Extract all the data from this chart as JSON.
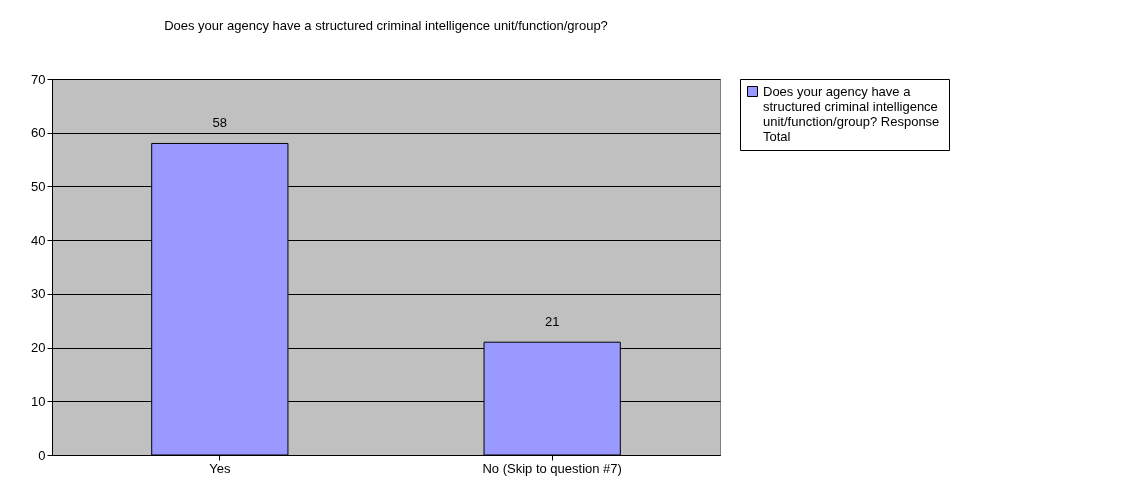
{
  "chart_data": {
    "type": "bar",
    "title": "Does your agency have a structured criminal intelligence unit/function/group?",
    "categories": [
      "Yes",
      "No (Skip to question #7)"
    ],
    "series": [
      {
        "name": "Does your agency have a structured criminal intelligence unit/function/group?  Response Total",
        "color": "#9999ff",
        "values": [
          58,
          21
        ]
      }
    ],
    "ylim": [
      0,
      70
    ],
    "yticks": [
      0,
      10,
      20,
      30,
      40,
      50,
      60,
      70
    ],
    "grid": "y",
    "legend": "right",
    "data_labels": true
  }
}
